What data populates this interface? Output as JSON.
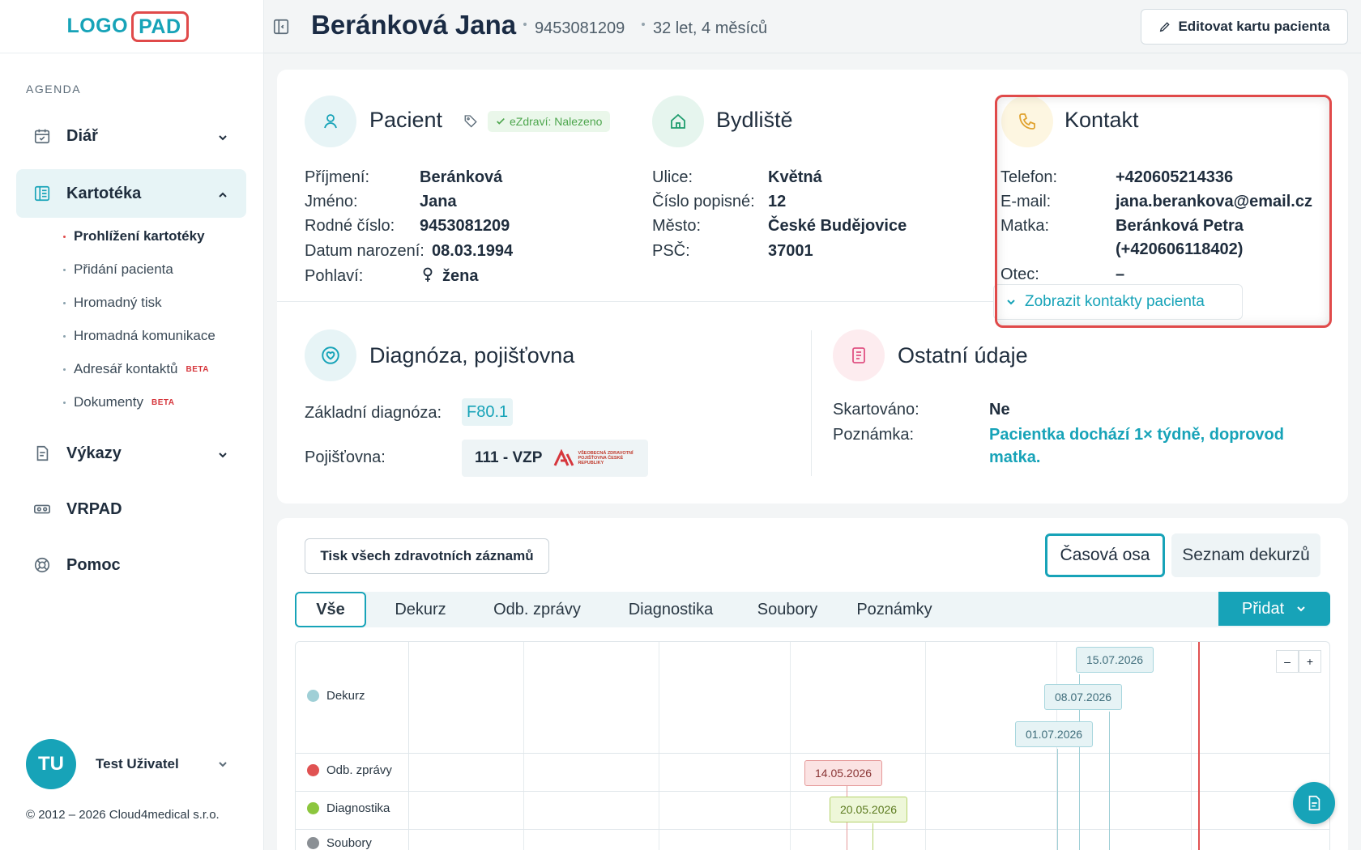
{
  "logo": {
    "part1": "LOGO",
    "part2": "PAD"
  },
  "sidebar": {
    "section": "AGENDA",
    "items": [
      {
        "label": "Diář"
      },
      {
        "label": "Kartotéka"
      },
      {
        "label": "Výkazy"
      },
      {
        "label": "VRPAD"
      },
      {
        "label": "Pomoc"
      }
    ],
    "subitems": [
      {
        "label": "Prohlížení kartotéky"
      },
      {
        "label": "Přidání pacienta"
      },
      {
        "label": "Hromadný tisk"
      },
      {
        "label": "Hromadná komunikace"
      },
      {
        "label": "Adresář kontaktů",
        "badge": "BETA"
      },
      {
        "label": "Dokumenty",
        "badge": "BETA"
      }
    ],
    "user": {
      "initials": "TU",
      "name": "Test Uživatel"
    },
    "copyright": "© 2012 – 2026 Cloud4medical s.r.o."
  },
  "header": {
    "name": "Beránková Jana",
    "id": "9453081209",
    "age": "32 let, 4 měsíců",
    "edit_button": "Editovat kartu pacienta"
  },
  "patient": {
    "title": "Pacient",
    "ezdravi": "eZdraví: Nalezeno",
    "fields": [
      {
        "label": "Příjmení:",
        "value": "Beránková"
      },
      {
        "label": "Jméno:",
        "value": "Jana"
      },
      {
        "label": "Rodné číslo:",
        "value": "9453081209"
      },
      {
        "label": "Datum narození:",
        "value": "08.03.1994"
      },
      {
        "label": "Pohlaví:",
        "value": "žena"
      }
    ]
  },
  "address": {
    "title": "Bydliště",
    "fields": [
      {
        "label": "Ulice:",
        "value": "Květná"
      },
      {
        "label": "Číslo popisné:",
        "value": "12"
      },
      {
        "label": "Město:",
        "value": "České Budějovice"
      },
      {
        "label": "PSČ:",
        "value": "37001"
      }
    ]
  },
  "contact": {
    "title": "Kontakt",
    "fields": [
      {
        "label": "Telefon:",
        "value": "+420605214336"
      },
      {
        "label": "E-mail:",
        "value": "jana.berankova@email.cz"
      },
      {
        "label": "Matka:",
        "value": "Beránková Petra",
        "value2": "(+420606118402)"
      },
      {
        "label": "Otec:",
        "value": "–"
      }
    ],
    "show_button": "Zobrazit kontakty pacienta"
  },
  "diagnosis": {
    "title": "Diagnóza, pojišťovna",
    "diag_label": "Základní diagnóza:",
    "diag_value": "F80.1",
    "insurer_label": "Pojišťovna:",
    "insurer_value": "111 - VZP",
    "insurer_logo_text": "VŠEOBECNÁ ZDRAVOTNÍ POJIŠŤOVNA ČESKÉ REPUBLIKY"
  },
  "other": {
    "title": "Ostatní údaje",
    "fields": [
      {
        "label": "Skartováno:",
        "value": "Ne"
      },
      {
        "label": "Poznámka:",
        "value": "Pacientka dochází 1× týdně, doprovod",
        "value2": "matka."
      }
    ]
  },
  "records": {
    "print_button": "Tisk všech zdravotních záznamů",
    "view_timeline": "Časová osa",
    "view_list": "Seznam dekurzů",
    "tabs": [
      "Vše",
      "Dekurz",
      "Odb. zprávy",
      "Diagnostika",
      "Soubory",
      "Poznámky"
    ],
    "add_button": "Přidat"
  },
  "timeline": {
    "rows": [
      {
        "label": "Dekurz",
        "color": "#9fcfd6"
      },
      {
        "label": "Odb. zprávy",
        "color": "#e05252"
      },
      {
        "label": "Diagnostika",
        "color": "#8cc63e"
      },
      {
        "label": "Soubory",
        "color": "#8a8f94"
      }
    ],
    "events": [
      {
        "date": "15.07.2026"
      },
      {
        "date": "08.07.2026"
      },
      {
        "date": "01.07.2026"
      },
      {
        "date": "14.05.2026"
      },
      {
        "date": "20.05.2026"
      }
    ],
    "zoom_out": "–",
    "zoom_in": "+"
  }
}
